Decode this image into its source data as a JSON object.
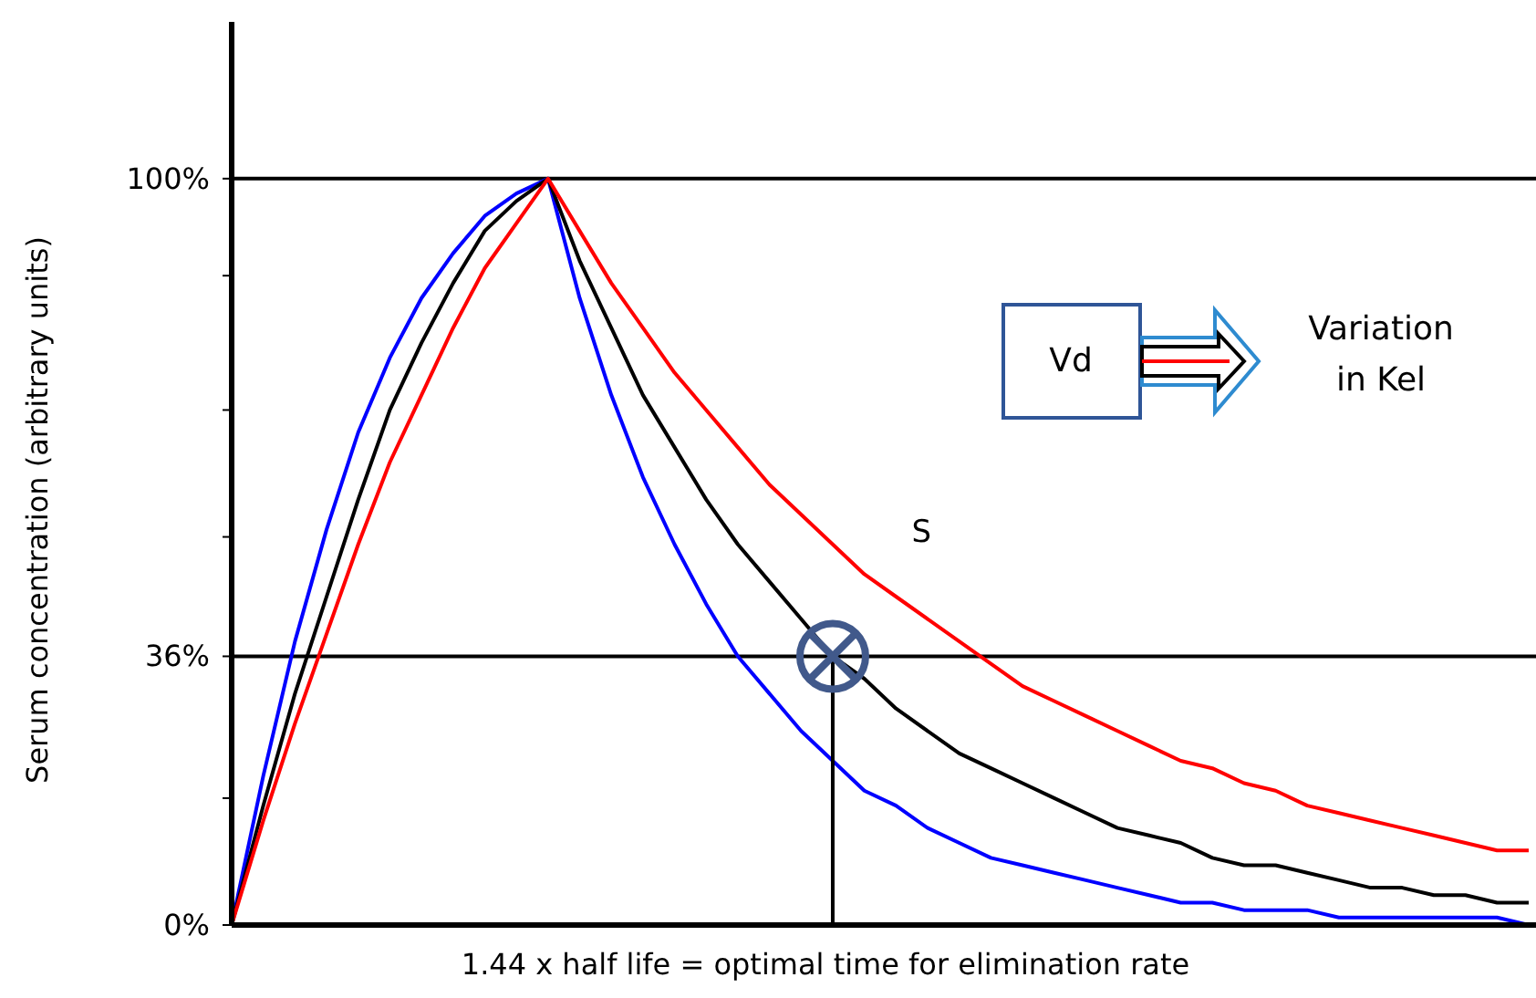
{
  "chart_data": {
    "type": "line",
    "xlabel": "1.44 x half life = optimal time for elimination rate",
    "ylabel": "Serum concentration (arbitrary units)",
    "categories": [
      null,
      null,
      null,
      null,
      null,
      null,
      null,
      null,
      null,
      null,
      null,
      null,
      null,
      null,
      null,
      null,
      null,
      null,
      null,
      null,
      null,
      null,
      null,
      null,
      null,
      null,
      null,
      null,
      null,
      null,
      null,
      null,
      null,
      null,
      null,
      null,
      null,
      null,
      null,
      null,
      null,
      null
    ],
    "ylim": [
      0,
      121
    ],
    "yticks": [
      {
        "value": 0,
        "label": "0%"
      },
      {
        "value": 17,
        "label": null
      },
      {
        "value": 36,
        "label": "36%"
      },
      {
        "value": 52,
        "label": null
      },
      {
        "value": 69,
        "label": null
      },
      {
        "value": 87,
        "label": null
      },
      {
        "value": 100,
        "label": "100%"
      }
    ],
    "tick_labels": "y",
    "series": [
      {
        "color": "#0000ff",
        "values": [
          0,
          20,
          38,
          53,
          66,
          76,
          84,
          90,
          95,
          98,
          100,
          84,
          71,
          60,
          51,
          43,
          36,
          31,
          26,
          22,
          18,
          16,
          13,
          11,
          9,
          8,
          7,
          6,
          5,
          4,
          3,
          3,
          2,
          2,
          2,
          1,
          1,
          1,
          1,
          1,
          1,
          0
        ]
      },
      {
        "color": "#000000",
        "values": [
          0,
          16,
          31,
          44,
          57,
          69,
          78,
          86,
          93,
          97,
          100,
          89,
          80,
          71,
          64,
          57,
          51,
          46,
          41,
          36,
          33,
          29,
          26,
          23,
          21,
          19,
          17,
          15,
          13,
          12,
          11,
          9,
          8,
          8,
          7,
          6,
          5,
          5,
          4,
          4,
          3,
          3
        ]
      },
      {
        "name": "S",
        "color": "#ff0000",
        "values": [
          0,
          14,
          27,
          39,
          51,
          62,
          71,
          80,
          88,
          94,
          100,
          93,
          86,
          80,
          74,
          69,
          64,
          59,
          55,
          51,
          47,
          44,
          41,
          38,
          35,
          32,
          30,
          28,
          26,
          24,
          22,
          21,
          19,
          18,
          16,
          15,
          14,
          13,
          12,
          11,
          10,
          10
        ]
      }
    ],
    "ref_lines": [
      {
        "axis": "y",
        "value": 100,
        "color": "#000000"
      },
      {
        "axis": "y",
        "value": 36,
        "color": "#000000"
      }
    ],
    "annotations": [
      "Vd",
      "Variation in Kel"
    ]
  }
}
